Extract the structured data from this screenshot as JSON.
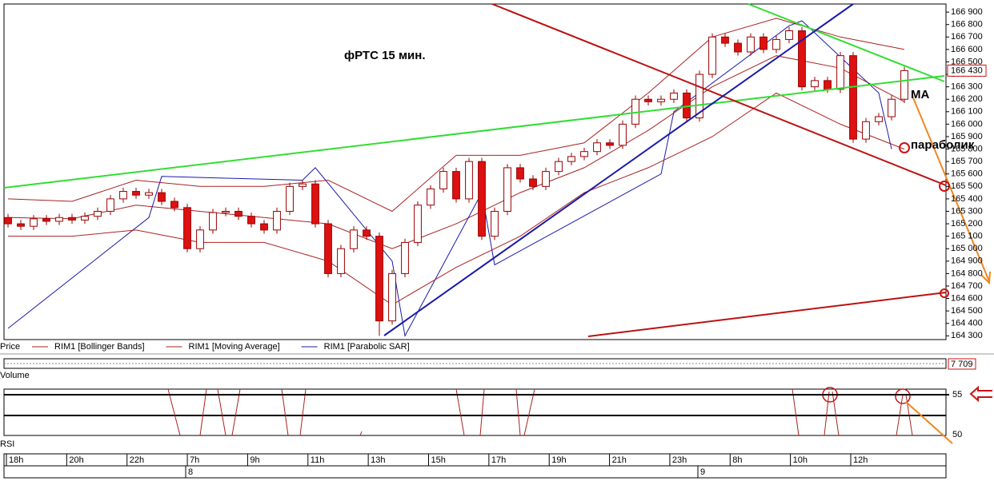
{
  "chart_data": {
    "type": "candlestick",
    "annotations": {
      "title": "фРТС   15 мин.",
      "ma": "МА",
      "sar": "параболик"
    },
    "legend": {
      "price": "Price"
    },
    "candles": {
      "open": [
        165250,
        165200,
        165180,
        165240,
        165220,
        165250,
        165230,
        165260,
        165300,
        165400,
        165460,
        165430,
        165450,
        165380,
        165330,
        165000,
        165150,
        165290,
        165300,
        165260,
        165200,
        165150,
        165300,
        165500,
        165520,
        165200,
        164800,
        165000,
        165150,
        165100,
        164420,
        164800,
        165050,
        165350,
        165480,
        165620,
        165400,
        165700,
        165100,
        165300,
        165650,
        165560,
        165500,
        165620,
        165700,
        165740,
        165780,
        165850,
        165830,
        166000,
        166200,
        166180,
        166200,
        166250,
        166050,
        166400,
        166700,
        166650,
        166580,
        166700,
        166600,
        166680,
        166750,
        166300,
        166350,
        166280,
        166550,
        165880,
        166020,
        166060,
        166200
      ],
      "high": [
        165280,
        165230,
        165270,
        165270,
        165280,
        165280,
        165290,
        165330,
        165430,
        165490,
        165490,
        165480,
        165480,
        165410,
        165360,
        165180,
        165320,
        165330,
        165330,
        165290,
        165230,
        165330,
        165530,
        165550,
        165550,
        165230,
        165030,
        165180,
        165180,
        165130,
        164830,
        165080,
        165380,
        165510,
        165650,
        165650,
        165730,
        165730,
        165330,
        165680,
        165680,
        165590,
        165650,
        165730,
        165770,
        165810,
        165880,
        165880,
        166030,
        166230,
        166230,
        166230,
        166280,
        166280,
        166430,
        166730,
        166730,
        166680,
        166730,
        166730,
        166710,
        166780,
        166780,
        166380,
        166380,
        166580,
        166580,
        166050,
        166090,
        166230,
        166460
      ],
      "low": [
        165170,
        165150,
        165150,
        165190,
        165190,
        165200,
        165200,
        165230,
        165270,
        165370,
        165400,
        165400,
        165350,
        165300,
        164970,
        164970,
        165120,
        165260,
        165230,
        165170,
        165120,
        165120,
        165270,
        165470,
        165170,
        164770,
        164770,
        164970,
        165070,
        164300,
        164390,
        164770,
        165020,
        165320,
        165450,
        165370,
        165370,
        165070,
        165070,
        165270,
        165530,
        165470,
        165470,
        165590,
        165670,
        165710,
        165750,
        165800,
        165800,
        165970,
        166150,
        166150,
        166170,
        166020,
        166020,
        166370,
        166620,
        166550,
        166550,
        166570,
        166570,
        166650,
        166270,
        166270,
        166250,
        166250,
        165850,
        165850,
        165990,
        166030,
        166170
      ],
      "close": [
        165200,
        165180,
        165240,
        165220,
        165250,
        165230,
        165260,
        165300,
        165400,
        165460,
        165430,
        165450,
        165380,
        165330,
        165000,
        165150,
        165290,
        165300,
        165260,
        165200,
        165150,
        165300,
        165500,
        165520,
        165200,
        164800,
        165000,
        165150,
        165100,
        164420,
        164800,
        165050,
        165350,
        165480,
        165620,
        165400,
        165700,
        165100,
        165300,
        165650,
        165560,
        165500,
        165620,
        165700,
        165740,
        165780,
        165850,
        165830,
        166000,
        166200,
        166180,
        166200,
        166250,
        166050,
        166400,
        166700,
        166650,
        166580,
        166700,
        166600,
        166680,
        166750,
        166300,
        166350,
        166280,
        166550,
        165880,
        166020,
        166060,
        166200,
        166430
      ]
    },
    "up_color": "#ffffff",
    "down_color": "#dd1111",
    "edge_color": "#990000",
    "series": [
      {
        "name": "RIM1 [Bollinger Bands]",
        "color": "#aa2222",
        "x": [
          0,
          5,
          10,
          15,
          20,
          25,
          30,
          35,
          40,
          45,
          50,
          55,
          60,
          65,
          70
        ],
        "values": [
          165400,
          165380,
          165550,
          165500,
          165500,
          165550,
          165300,
          165750,
          165750,
          165850,
          166250,
          166700,
          166850,
          166700,
          166600
        ]
      },
      {
        "name": "RIM1 [Moving Average]",
        "color": "#aa2222",
        "x": [
          0,
          5,
          10,
          15,
          20,
          25,
          30,
          35,
          40,
          45,
          50,
          55,
          60,
          65,
          70
        ],
        "values": [
          165250,
          165240,
          165350,
          165300,
          165250,
          165200,
          165000,
          165200,
          165450,
          165650,
          165950,
          166300,
          166550,
          166450,
          166180
        ]
      },
      {
        "name": "RIM1 [Parabolic SAR]",
        "color": "#1a1aaa",
        "x": [
          0,
          11,
          12,
          23,
          24,
          30,
          31,
          37,
          38,
          51,
          52,
          61,
          62,
          68,
          69
        ],
        "values": [
          164360,
          165250,
          165580,
          165550,
          165650,
          164900,
          164300,
          165450,
          164870,
          165600,
          166100,
          166790,
          166830,
          166250,
          165800
        ]
      }
    ],
    "band_lower": {
      "x": [
        0,
        5,
        10,
        15,
        20,
        25,
        30,
        35,
        40,
        45,
        50,
        55,
        60,
        65,
        70
      ],
      "values": [
        165100,
        165100,
        165150,
        165050,
        165050,
        164900,
        164550,
        164850,
        165100,
        165450,
        165650,
        165900,
        166250,
        166000,
        165800
      ]
    },
    "ylim": [
      164270,
      166965
    ],
    "yticks": [
      {
        "value": 164300,
        "label": "164 300"
      },
      {
        "value": 164400,
        "label": "164 400"
      },
      {
        "value": 164500,
        "label": "164 500"
      },
      {
        "value": 164600,
        "label": "164 600"
      },
      {
        "value": 164700,
        "label": "164 700"
      },
      {
        "value": 164800,
        "label": "164 800"
      },
      {
        "value": 164900,
        "label": "164 900"
      },
      {
        "value": 165000,
        "label": "165 000"
      },
      {
        "value": 165100,
        "label": "165 100"
      },
      {
        "value": 165200,
        "label": "165 200"
      },
      {
        "value": 165300,
        "label": "165 300"
      },
      {
        "value": 165400,
        "label": "165 400"
      },
      {
        "value": 165500,
        "label": "165 500"
      },
      {
        "value": 165600,
        "label": "165 600"
      },
      {
        "value": 165700,
        "label": "165 700"
      },
      {
        "value": 165800,
        "label": "165 800"
      },
      {
        "value": 165900,
        "label": "165 900"
      },
      {
        "value": 166000,
        "label": "166 000"
      },
      {
        "value": 166100,
        "label": "166 100"
      },
      {
        "value": 166200,
        "label": "166 200"
      },
      {
        "value": 166300,
        "label": "166 300"
      },
      {
        "value": 166400,
        "label": "166 400"
      },
      {
        "value": 166500,
        "label": "166 500"
      },
      {
        "value": 166600,
        "label": "166 600"
      },
      {
        "value": 166700,
        "label": "166 700"
      },
      {
        "value": 166800,
        "label": "166 800"
      },
      {
        "value": 166900,
        "label": "166 900"
      }
    ],
    "last_price": {
      "value": 166430,
      "label": "166 430"
    },
    "volume": {
      "title": "Volume",
      "last": {
        "value": 7709,
        "label": "7 709"
      }
    },
    "rsi": {
      "title": "RSI",
      "ylim": [
        49.9,
        55.7
      ],
      "yticks": [
        50,
        55
      ]
    },
    "time_labels": [
      "18h",
      "20h",
      "22h",
      "7h",
      "9h",
      "11h",
      "13h",
      "15h",
      "17h",
      "19h",
      "21h",
      "23h",
      "8h",
      "10h",
      "12h"
    ],
    "dates": [
      "8",
      "9"
    ]
  }
}
